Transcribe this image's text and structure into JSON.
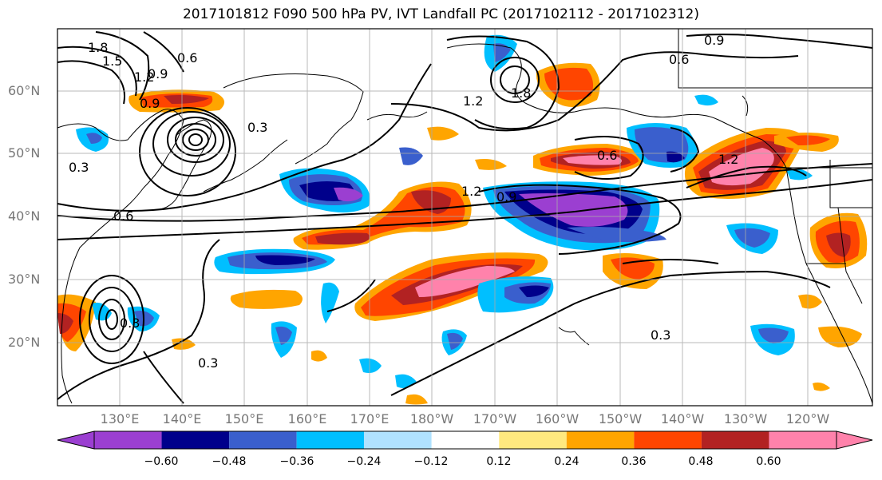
{
  "title": "2017101812 F090 500 hPa PV, IVT Landfall PC (2017102112 - 2017102312)",
  "lat_labels": [
    "20°N",
    "30°N",
    "40°N",
    "50°N",
    "60°N"
  ],
  "lon_labels": [
    "130°E",
    "140°E",
    "150°E",
    "160°E",
    "170°E",
    "180°W",
    "170°W",
    "160°W",
    "150°W",
    "140°W",
    "130°W",
    "120°W"
  ],
  "contour_labels": [
    "1.8",
    "1.5",
    "1.2",
    "0.9",
    "0.6",
    "0.3",
    "0.9",
    "0.6",
    "1.2",
    "1.8",
    "0.6",
    "1.2",
    "0.9",
    "1.2",
    "0.6",
    "0.3",
    "0.3",
    "0.9",
    "0.3",
    "0.3"
  ],
  "colorbar": {
    "ticks": [
      "−0.60",
      "−0.48",
      "−0.36",
      "−0.24",
      "−0.12",
      "0.12",
      "0.24",
      "0.36",
      "0.48",
      "0.60"
    ],
    "colors": [
      "#9b3fd1",
      "#00008b",
      "#3a5fcd",
      "#00bfff",
      "#b0e2ff",
      "#ffffff",
      "#ffe97f",
      "#ffa500",
      "#ff4500",
      "#b22222",
      "#ff82ab"
    ]
  },
  "colors": {
    "neg_strong": "#9b3fd1",
    "neg_dark": "#00008b",
    "neg_mid": "#3a5fcd",
    "neg_light": "#00bfff",
    "pos_light": "#ffa500",
    "pos_mid": "#ff4500",
    "pos_dark": "#b22222",
    "pos_strong": "#ff82ab",
    "grid": "#aaaaaa",
    "axis_label": "#777777"
  }
}
